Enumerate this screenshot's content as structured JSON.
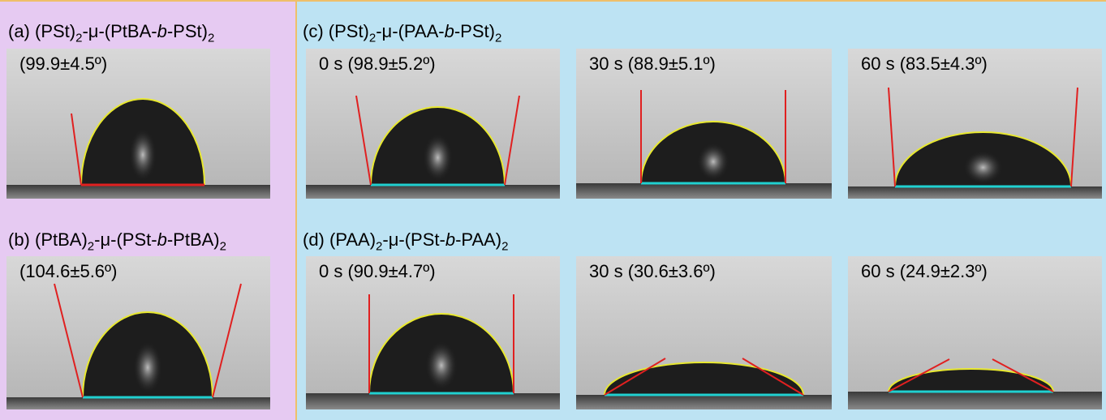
{
  "panels": [
    {
      "label": [
        "(a) (PSt)",
        "2",
        "-μ-(PtBA-",
        "b",
        "-PSt)",
        "2"
      ],
      "images": [
        {
          "caption": "(99.9±4.5º)"
        }
      ]
    },
    {
      "label": [
        "(b) (PtBA)",
        "2",
        "-μ-(PSt-",
        "b",
        "-PtBA)",
        "2"
      ],
      "images": [
        {
          "caption": "(104.6±5.6º)"
        }
      ]
    },
    {
      "label": [
        "(c) (PSt)",
        "2",
        "-μ-(PAA-",
        "b",
        "-PSt)",
        "2"
      ],
      "images": [
        {
          "caption": "0 s (98.9±5.2º)"
        },
        {
          "caption": "30 s (88.9±5.1º)"
        },
        {
          "caption": "60 s (83.5±4.3º)"
        }
      ]
    },
    {
      "label": [
        "(d) (PAA)",
        "2",
        "-μ-(PSt-",
        "b",
        "-PAA)",
        "2"
      ],
      "images": [
        {
          "caption": "0 s (90.9±4.7º)"
        },
        {
          "caption": "30 s (30.6±3.6º)"
        },
        {
          "caption": "60 s (24.9±2.3º)"
        }
      ]
    }
  ]
}
